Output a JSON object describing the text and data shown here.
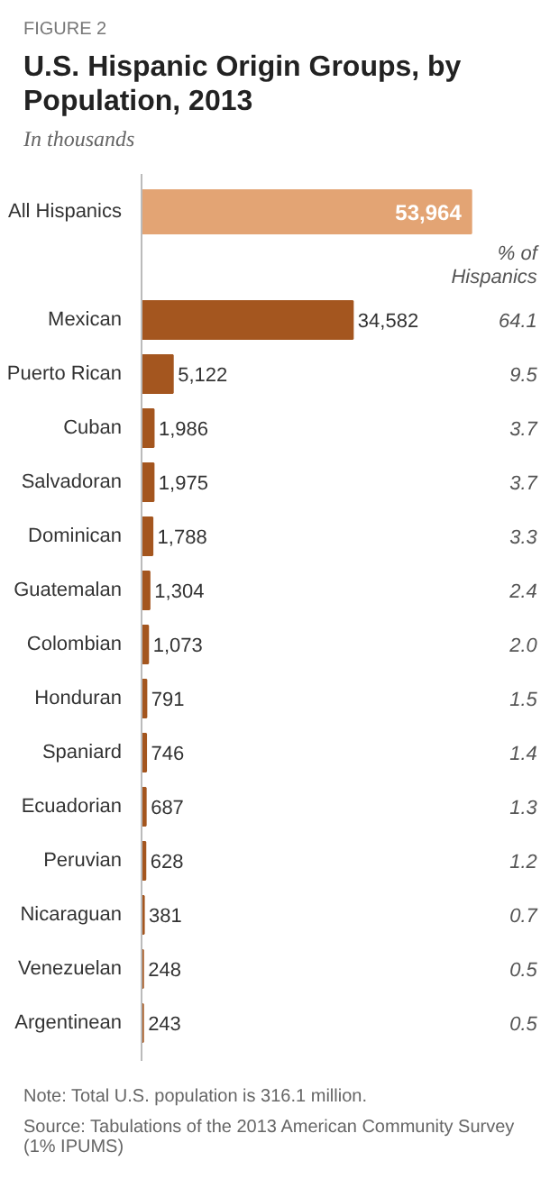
{
  "chart_data": {
    "type": "bar",
    "orientation": "horizontal",
    "title": "U.S. Hispanic Origin Groups, by Population, 2013",
    "subtitle": "In thousands",
    "categories": [
      "All Hispanics",
      "Mexican",
      "Puerto Rican",
      "Cuban",
      "Salvadoran",
      "Dominican",
      "Guatemalan",
      "Colombian",
      "Honduran",
      "Spaniard",
      "Ecuadorian",
      "Peruvian",
      "Nicaraguan",
      "Venezuelan",
      "Argentinean"
    ],
    "values": [
      53964,
      34582,
      5122,
      1986,
      1975,
      1788,
      1304,
      1073,
      791,
      746,
      687,
      628,
      381,
      248,
      243
    ],
    "value_labels": [
      "53,964",
      "34,582",
      "5,122",
      "1,986",
      "1,975",
      "1,788",
      "1,304",
      "1,073",
      "791",
      "746",
      "687",
      "628",
      "381",
      "248",
      "243"
    ],
    "colors": [
      "#e3a474",
      "#a4561f",
      "#a4561f",
      "#a4561f",
      "#a4561f",
      "#a4561f",
      "#a4561f",
      "#a4561f",
      "#a4561f",
      "#a4561f",
      "#a4561f",
      "#a4561f",
      "#a4561f",
      "#a4561f",
      "#a4561f"
    ],
    "grid": false,
    "annotations": [
      "FIGURE 2",
      "% of Hispanics",
      "64.1",
      "9.5",
      "3.7",
      "3.7",
      "3.3",
      "2.4",
      "2.0",
      "1.5",
      "1.4",
      "1.3",
      "1.2",
      "0.7",
      "0.5",
      "0.5",
      "Note: Total U.S. population is 316.1 million.",
      "Source: Tabulations of the 2013 American Community Survey (1% IPUMS)"
    ]
  }
}
